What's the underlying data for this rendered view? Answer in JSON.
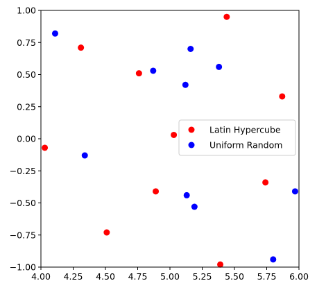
{
  "chart_data": {
    "type": "scatter",
    "title": "",
    "xlabel": "",
    "ylabel": "",
    "xlim": [
      4.0,
      6.0
    ],
    "ylim": [
      -1.0,
      1.0
    ],
    "grid": false,
    "legend_position": "center-right",
    "x_ticks": [
      "4.00",
      "4.25",
      "4.50",
      "4.75",
      "5.00",
      "5.25",
      "5.50",
      "5.75",
      "6.00"
    ],
    "x_tick_values": [
      4.0,
      4.25,
      4.5,
      4.75,
      5.0,
      5.25,
      5.5,
      5.75,
      6.0
    ],
    "y_ticks": [
      "−1.00",
      "−0.75",
      "−0.50",
      "−0.25",
      "0.00",
      "0.25",
      "0.50",
      "0.75",
      "1.00"
    ],
    "y_tick_values": [
      -1.0,
      -0.75,
      -0.5,
      -0.25,
      0.0,
      0.25,
      0.5,
      0.75,
      1.0
    ],
    "series": [
      {
        "name": "Latin Hypercube",
        "color": "#ff0000",
        "x": [
          4.03,
          4.31,
          4.51,
          4.76,
          4.89,
          5.03,
          5.39,
          5.44,
          5.74,
          5.87
        ],
        "y": [
          -0.07,
          0.71,
          -0.73,
          0.51,
          -0.41,
          0.03,
          -0.98,
          0.95,
          -0.34,
          0.33
        ]
      },
      {
        "name": "Uniform Random",
        "color": "#0000ff",
        "x": [
          4.11,
          4.34,
          4.87,
          5.12,
          5.13,
          5.16,
          5.19,
          5.38,
          5.8,
          5.97
        ],
        "y": [
          0.82,
          -0.13,
          0.53,
          0.42,
          -0.44,
          0.7,
          -0.53,
          0.56,
          -0.94,
          -0.41
        ]
      }
    ]
  }
}
